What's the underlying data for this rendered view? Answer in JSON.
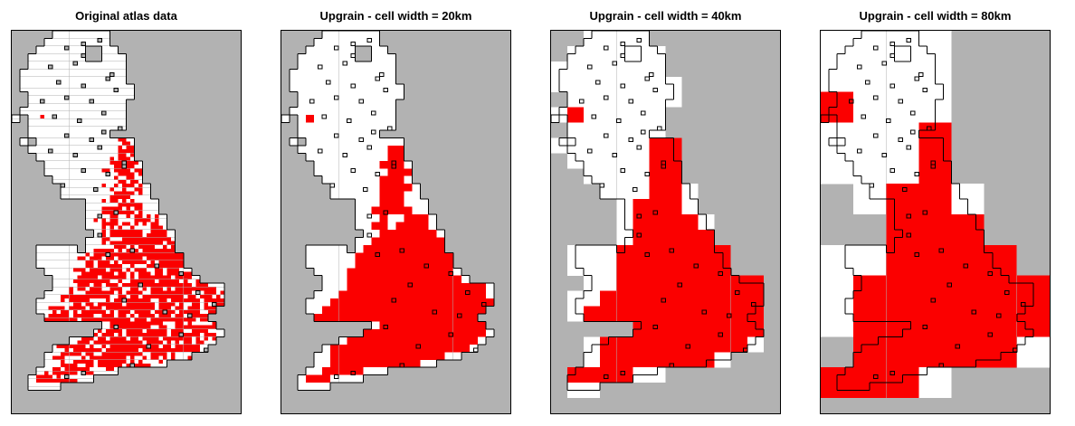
{
  "panels": [
    {
      "title": "Original atlas data",
      "cell_width_km": 10,
      "grid_factor": 0.5
    },
    {
      "title": "Upgrain - cell width = 20km",
      "cell_width_km": 20,
      "grid_factor": 1
    },
    {
      "title": "Upgrain - cell width = 40km",
      "cell_width_km": 40,
      "grid_factor": 2
    },
    {
      "title": "Upgrain - cell width = 80km",
      "cell_width_km": 80,
      "grid_factor": 4
    }
  ],
  "colors": {
    "sea_nodata": "#b2b2b2",
    "absence": "#ffffff",
    "presence": "#fb0000",
    "outline": "#000000",
    "panel_border": "#000000",
    "title_text": "#000000",
    "page_background": "#ffffff"
  },
  "map_data": {
    "type": "heatmap",
    "description": "Great Britain presence-absence atlas raster upgrained to coarser grids. Gray = outside atlas / no data, white = surveyed absence, red = recorded presence. Black outline = original atlas data boundary (with small 10km holes) overlaid identically on all four panels.",
    "cols": 28,
    "rows": 50,
    "base_cell_km": 20,
    "legend": {
      ".": "no-data",
      "o": "absence",
      "X": "presence"
    },
    "grid": [
      ".....ooooooo................",
      "....oooooooo................",
      "...oooooo..oo...............",
      "..ooooooo..ooo..............",
      "..oooooooooooo..............",
      ".ooooooooooooo..............",
      ".ooooooooooooo..............",
      ".oooooooooooooo.............",
      "..ooooooooooooo.............",
      "..oooooooooooo..............",
      ".ooooooooooooo..............",
      "o.oXoooooooooo..............",
      "..oooooooooooo..............",
      "..oooooooooo................",
      ".o.oooooooooooo.............",
      "..oooooooooooXX.............",
      "...ooooooooooXX.............",
      "....ooooooooXXXo............",
      "....oooooooooXXX............",
      ".....oooooooXXXo............",
      "......ooooooXXXXo...........",
      "......ooooooXXXoo...........",
      ".........oooXXXooo..........",
      ".........ooXXXXXoo..........",
      ".........oooXooXXXo.........",
      ".........ooXXoXXXXo.........",
      "..........ooXXXXXXXo........",
      ".........ooXXXXXXXXX........",
      "...ooooo.oXXXXXXXXXX........",
      "...ooooooXXXXXXXXXXXX.......",
      "...ooooooXXXXXXXXXXXX.......",
      "....ooooXXXXXXXXXXXXXo......",
      ".....oooXXXXXXXXXXXXXXo.....",
      ".....oooXXXXXXXXXXXXXXXXXo..",
      "....oooXXXXXXXXXXXXXXXXXXo..",
      "...oooXXXXXXXXXXXXXXXXXXXX..",
      "...ooXXXXXXXXXXXXXXXXXXXX...",
      "....XXXXXXXXXXXXXXXXXXXX....",
      "...........oXXXXXXXXXXXXX...",
      "..........XXXXXXXXXXXXXXXo..",
      ".......oXXXXXXXXXXXXXXXXo...",
      ".....oXXXXXXXXXXXXXXXXXo....",
      "....ooXXXXXXXXXXXXXXoo......",
      "....ooXXXXXXXXXXXoo.........",
      "...ooXXXXXooo...............",
      "..oXXXoooo..................",
      "..oooo......................",
      "............................",
      "............................",
      "............................"
    ],
    "boundary_holes_10km": [
      [
        13,
        4
      ],
      [
        17,
        3
      ],
      [
        21,
        2
      ],
      [
        9,
        9
      ],
      [
        15,
        8
      ],
      [
        17,
        6
      ],
      [
        24,
        11
      ],
      [
        11,
        13
      ],
      [
        17,
        14
      ],
      [
        23,
        12
      ],
      [
        7,
        18
      ],
      [
        13,
        17
      ],
      [
        19,
        18
      ],
      [
        25,
        15
      ],
      [
        10,
        22
      ],
      [
        16,
        23
      ],
      [
        22,
        21
      ],
      [
        26,
        25
      ],
      [
        13,
        27
      ],
      [
        19,
        28
      ],
      [
        22,
        26
      ],
      [
        9,
        31
      ],
      [
        15,
        32
      ],
      [
        21,
        30
      ],
      [
        17,
        36
      ],
      [
        23,
        37
      ],
      [
        27,
        34
      ],
      [
        27,
        35
      ],
      [
        12,
        40
      ],
      [
        20,
        41
      ],
      [
        21,
        48
      ],
      [
        25,
        47
      ],
      [
        21,
        53
      ],
      [
        29,
        57
      ],
      [
        23,
        58
      ],
      [
        35,
        61
      ],
      [
        41,
        63
      ],
      [
        31,
        66
      ],
      [
        27,
        70
      ],
      [
        45,
        68
      ],
      [
        37,
        73
      ],
      [
        49,
        71
      ],
      [
        25,
        77
      ],
      [
        41,
        79
      ],
      [
        33,
        82
      ],
      [
        47,
        83
      ],
      [
        29,
        87
      ],
      [
        13,
        90
      ],
      [
        17,
        89
      ],
      [
        43,
        74
      ]
    ]
  }
}
